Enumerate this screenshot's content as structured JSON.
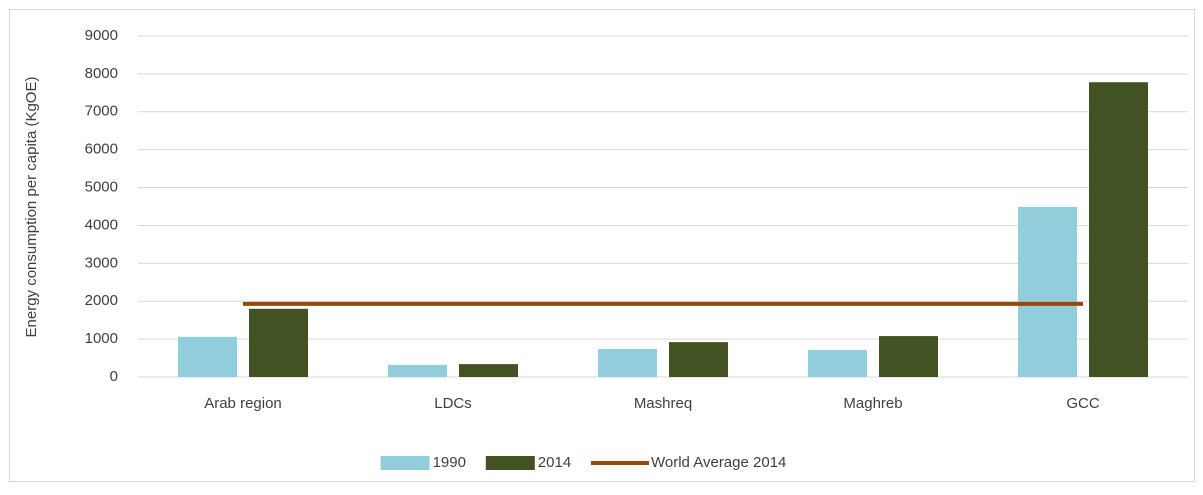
{
  "chart_data": {
    "type": "bar",
    "y_axis_label": "Energy consumption per capita (KgOE)",
    "categories": [
      "Arab region",
      "LDCs",
      "Mashreq",
      "Maghreb",
      "GCC"
    ],
    "series": [
      {
        "name": "1990",
        "color": "#92cddc",
        "values": [
          1060,
          320,
          740,
          710,
          4490
        ]
      },
      {
        "name": "2014",
        "color": "#435223",
        "values": [
          1800,
          340,
          920,
          1080,
          7780
        ]
      },
      {
        "name": "World Average 2014",
        "type": "line",
        "color": "#984807",
        "values": [
          1930,
          1930,
          1930,
          1930,
          1930
        ]
      }
    ],
    "ylim": [
      0,
      9000
    ],
    "yticks": [
      0,
      1000,
      2000,
      3000,
      4000,
      5000,
      6000,
      7000,
      8000,
      9000
    ],
    "grid": true,
    "legend": "bottom"
  }
}
